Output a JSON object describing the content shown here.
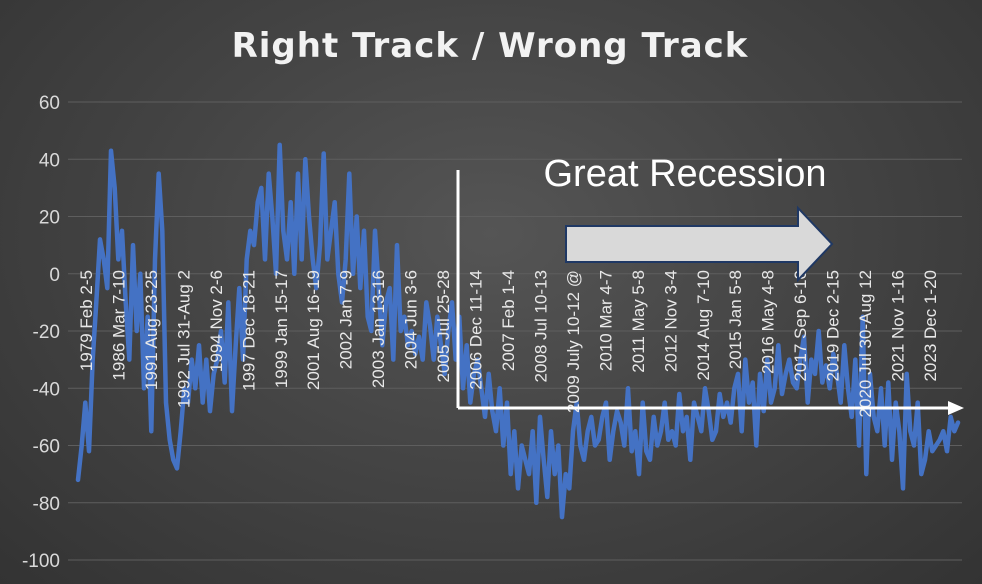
{
  "chart_data": {
    "type": "line",
    "title": "Right Track / Wrong Track",
    "xlabel": "",
    "ylabel": "",
    "ylim": [
      -100,
      60
    ],
    "yticks": [
      60,
      40,
      20,
      0,
      -20,
      -40,
      -60,
      -80,
      -100
    ],
    "grid": true,
    "legend": "none",
    "colors": {
      "series": "#4472c4",
      "annotation": "#ffffff",
      "arrow_fill": "#d9d9d9"
    },
    "x_tick_labels": [
      "1979 Feb 2-5",
      "1986 Mar 7-10",
      "1991 Aug 23-25",
      "1992 Jul 31-Aug 2",
      "1994 Nov 2-6",
      "1997 Dec 18-21",
      "1999 Jan 15-17",
      "2001 Aug 16-19",
      "2002 Jan 7-9",
      "2003 Jan 13-16",
      "2004 Jun 3-6",
      "2005 Jul 25-28",
      "2006 Dec 11-14",
      "2007 Feb 1-4",
      "2008 Jul 10-13",
      "2009 July 10-12 @",
      "2010 Mar 4-7",
      "2011 May 5-8",
      "2012 Nov 3-4",
      "2014 Aug 7-10",
      "2015 Jan 5-8",
      "2016 May 4-8",
      "2017 Sep 6-10",
      "2019 Dec 2-15",
      "2020 Jul 30-Aug 12",
      "2021 Nov 1-16",
      "2023 Dec 1-20"
    ],
    "series": [
      {
        "values": [
          -72,
          -60,
          -45,
          -62,
          -30,
          -10,
          12,
          5,
          -5,
          43,
          30,
          5,
          15,
          -10,
          -30,
          10,
          -20,
          0,
          -40,
          -15,
          -55,
          5,
          35,
          15,
          -45,
          -58,
          -65,
          -68,
          -55,
          -40,
          -45,
          -30,
          -40,
          -25,
          -45,
          -30,
          -48,
          -35,
          -30,
          -20,
          -38,
          -10,
          -48,
          -25,
          -5,
          -30,
          5,
          15,
          10,
          25,
          30,
          5,
          35,
          20,
          0,
          45,
          15,
          5,
          25,
          0,
          35,
          5,
          40,
          20,
          5,
          -5,
          10,
          42,
          5,
          15,
          25,
          0,
          -10,
          5,
          35,
          0,
          20,
          -5,
          15,
          -15,
          -20,
          15,
          -5,
          -25,
          -10,
          -5,
          -30,
          10,
          -20,
          -15,
          -25,
          -20,
          -28,
          -22,
          -30,
          -10,
          -18,
          -30,
          -15,
          -25,
          -35,
          -20,
          -10,
          -30,
          -15,
          -40,
          -25,
          -45,
          -35,
          -30,
          -40,
          -50,
          -35,
          -48,
          -55,
          -40,
          -60,
          -45,
          -70,
          -55,
          -75,
          -60,
          -65,
          -70,
          -55,
          -80,
          -50,
          -65,
          -78,
          -55,
          -70,
          -60,
          -85,
          -70,
          -75,
          -55,
          -45,
          -60,
          -65,
          -55,
          -50,
          -60,
          -58,
          -50,
          -45,
          -65,
          -55,
          -48,
          -52,
          -60,
          -40,
          -62,
          -55,
          -70,
          -45,
          -62,
          -65,
          -50,
          -60,
          -55,
          -45,
          -58,
          -55,
          -60,
          -42,
          -55,
          -50,
          -65,
          -45,
          -50,
          -55,
          -40,
          -48,
          -58,
          -55,
          -42,
          -50,
          -45,
          -52,
          -40,
          -35,
          -55,
          -30,
          -45,
          -38,
          -60,
          -35,
          -48,
          -30,
          -45,
          -40,
          -25,
          -42,
          -35,
          -30,
          -38,
          -40,
          -30,
          -22,
          -45,
          -30,
          -35,
          -20,
          -38,
          -32,
          -40,
          -28,
          -35,
          -45,
          -25,
          -40,
          -50,
          -30,
          -60,
          -15,
          -70,
          -35,
          -50,
          -55,
          -40,
          -60,
          -38,
          -65,
          -45,
          -55,
          -75,
          -35,
          -55,
          -60,
          -45,
          -70,
          -65,
          -55,
          -62,
          -60,
          -58,
          -55,
          -62,
          -50,
          -55,
          -52
        ]
      }
    ],
    "annotations": [
      {
        "text": "Great Recession"
      }
    ]
  }
}
